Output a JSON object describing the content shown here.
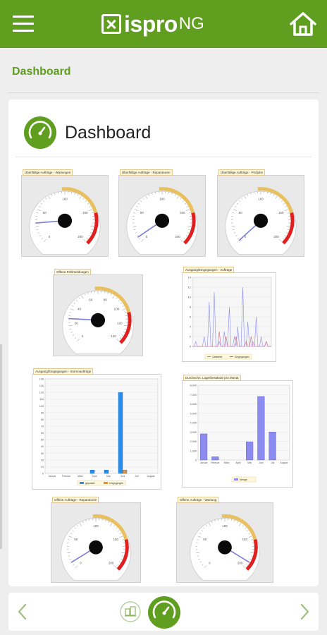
{
  "header": {
    "logo_text": "ispro",
    "logo_suffix": "NG"
  },
  "breadcrumb": "Dashboard",
  "card": {
    "title": "Dashboard"
  },
  "colors": {
    "brand": "#5f9e1f",
    "gauge_red": "#e02020",
    "gauge_yellow": "#e8c060",
    "bar_blue": "#2a8ee8",
    "bar_orange": "#e8902a",
    "bar_violet": "#8c8cf0"
  },
  "gauges": [
    {
      "title": "Überfällige Aufträge - Wartungen",
      "ticks": [
        "0",
        "50",
        "100",
        "150",
        "200"
      ],
      "value": 30,
      "max": 200
    },
    {
      "title": "Überfällige Aufträge - Reparaturen",
      "ticks": [
        "0",
        "50",
        "100",
        "150",
        "200"
      ],
      "value": 8,
      "max": 200
    },
    {
      "title": "Überfällige Aufträge - Prüfjobs",
      "ticks": [
        "0",
        "50",
        "100",
        "150",
        "200"
      ],
      "value": 2,
      "max": 200
    },
    {
      "title": "Offene Fehlmeldungen",
      "ticks": [
        "0",
        "20",
        "40",
        "60",
        "80",
        "100",
        "120",
        "140"
      ],
      "value": 25,
      "max": 140
    },
    {
      "title": "Offene Aufträge - Reparaturen",
      "ticks": [
        "0",
        "50",
        "100",
        "150",
        "200"
      ],
      "value": 10,
      "max": 200
    },
    {
      "title": "Offene Aufträge - Wartung",
      "ticks": [
        "0",
        "50",
        "100",
        "150",
        "200"
      ],
      "value": 190,
      "max": 200
    }
  ],
  "chart_data": [
    {
      "type": "line",
      "title": "Ausgang/Eingegangen - Aufträge",
      "y_ticks": [
        "0",
        "2",
        "4",
        "6",
        "8",
        "10",
        "12",
        "14"
      ],
      "ylim": [
        0,
        14
      ],
      "series": [
        {
          "name": "Gestartet",
          "values": [
            0,
            0,
            1,
            0,
            0,
            0,
            0,
            2,
            0,
            0,
            9,
            0,
            0,
            11,
            0,
            0,
            1,
            0,
            0,
            3,
            0,
            0,
            8,
            0,
            0,
            2,
            0,
            4,
            0,
            0,
            12,
            0,
            0,
            5,
            0,
            0,
            1,
            0,
            6,
            0,
            0,
            2,
            0,
            0,
            1,
            0,
            0,
            0
          ]
        },
        {
          "name": "Eingegangen",
          "values": [
            0,
            0,
            0,
            0,
            0,
            0,
            0,
            0,
            0,
            0,
            0,
            0,
            0,
            0,
            0,
            0,
            3,
            0,
            0,
            0,
            2,
            0,
            0,
            0,
            0,
            0,
            2,
            0,
            0,
            0,
            0,
            0,
            1,
            0,
            0,
            2,
            0,
            0,
            0,
            0,
            0,
            0,
            0,
            0,
            1,
            0,
            0,
            0
          ]
        }
      ]
    },
    {
      "type": "bar",
      "title": "Ausgang/Eingegangen - Stornoaufträge",
      "categories": [
        "Januar",
        "Februar",
        "März",
        "April",
        "Mai",
        "Juni",
        "Juli",
        "August"
      ],
      "y_ticks": [
        "0",
        "10",
        "20",
        "30",
        "40",
        "50",
        "60",
        "70",
        "80",
        "90",
        "100",
        "110",
        "120",
        "130",
        "140"
      ],
      "ylim": [
        0,
        140
      ],
      "series": [
        {
          "name": "gepostet",
          "values": [
            0,
            0,
            0,
            5,
            5,
            120,
            0,
            0
          ]
        },
        {
          "name": "eingegangen",
          "values": [
            0,
            0,
            0,
            0,
            0,
            5,
            0,
            0
          ]
        }
      ]
    },
    {
      "type": "bar",
      "title": "Durchschn. Lagerbestände pro Monat",
      "categories": [
        "Januar",
        "Februar",
        "März",
        "April",
        "Mai",
        "Juni",
        "Juli",
        "August"
      ],
      "y_ticks": [
        "0",
        "1.000",
        "2.000",
        "3.000",
        "4.000",
        "5.000",
        "6.000",
        "7.000",
        "8.000"
      ],
      "ylim": [
        0,
        8000
      ],
      "series": [
        {
          "name": "Menge",
          "values": [
            2800,
            350,
            0,
            0,
            1950,
            6800,
            3000,
            0
          ]
        }
      ]
    }
  ]
}
